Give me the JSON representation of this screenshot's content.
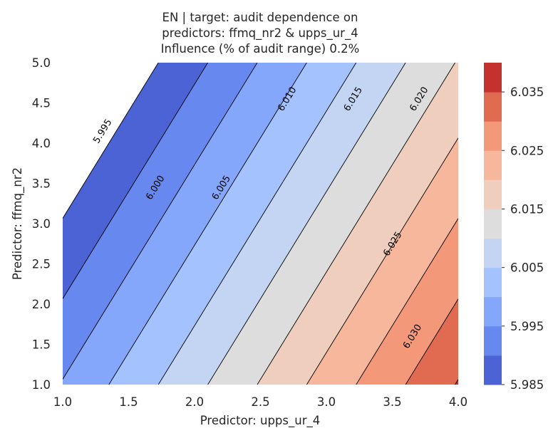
{
  "chart_data": {
    "type": "contour",
    "title_lines": [
      "EN | target: audit dependence on",
      "predictors: ffmq_nr2 & upps_ur_4",
      "Influence (% of audit range) 0.2%"
    ],
    "xlabel": "Predictor: upps_ur_4",
    "ylabel": "Predictor: ffmq_nr2",
    "xlim": [
      1.0,
      4.0
    ],
    "ylim": [
      1.0,
      5.0
    ],
    "x_ticks": [
      "1.0",
      "1.5",
      "2.0",
      "2.5",
      "3.0",
      "3.5",
      "4.0"
    ],
    "y_ticks": [
      "1.0",
      "1.5",
      "2.0",
      "2.5",
      "3.0",
      "3.5",
      "4.0",
      "4.5",
      "5.0"
    ],
    "surface": {
      "intercept": 5.987,
      "x_coef": 0.01333,
      "y_coef": -0.005
    },
    "levels": [
      5.985,
      5.99,
      5.995,
      6.0,
      6.005,
      6.01,
      6.015,
      6.02,
      6.025,
      6.03,
      6.035,
      6.04
    ],
    "contour_labels": [
      {
        "value": 5.995,
        "text": "5.995",
        "at": [
          1.3,
          4.15
        ]
      },
      {
        "value": 6.0,
        "text": "6.000",
        "at": [
          1.7,
          3.45
        ]
      },
      {
        "value": 6.005,
        "text": "6.005",
        "at": [
          2.2,
          3.45
        ]
      },
      {
        "value": 6.01,
        "text": "6.010",
        "at": [
          2.7,
          4.55
        ]
      },
      {
        "value": 6.015,
        "text": "6.015",
        "at": [
          3.2,
          4.55
        ]
      },
      {
        "value": 6.02,
        "text": "6.020",
        "at": [
          3.7,
          4.55
        ]
      },
      {
        "value": 6.025,
        "text": "6.025",
        "at": [
          3.5,
          2.75
        ]
      },
      {
        "value": 6.03,
        "text": "6.030",
        "at": [
          3.65,
          1.6
        ]
      }
    ],
    "colorbar": {
      "ticks": [
        "5.985",
        "5.995",
        "6.005",
        "6.015",
        "6.025",
        "6.035"
      ],
      "range": [
        5.985,
        6.04
      ]
    },
    "colormap": "coolwarm",
    "band_colors": [
      "#4b63d5",
      "#6788ee",
      "#84a6fb",
      "#a4c2fe",
      "#c4d5f3",
      "#dddddd",
      "#efcebd",
      "#f6b79c",
      "#f39879",
      "#e06b50",
      "#c3322e"
    ],
    "grid": false
  }
}
